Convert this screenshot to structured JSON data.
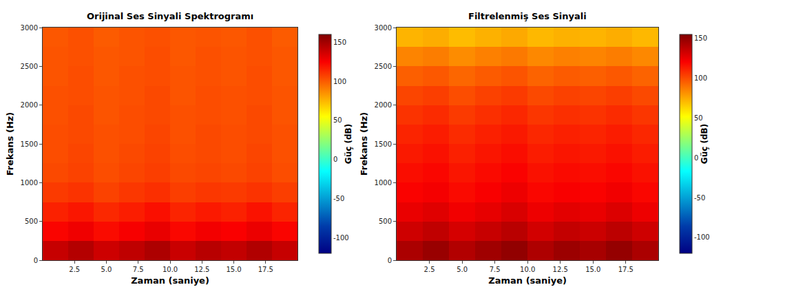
{
  "chart_data": [
    {
      "type": "heatmap",
      "title": "Orijinal Ses Sinyali Spektrogramı",
      "x_label": "Zaman (saniye)",
      "y_label": "Frekans (Hz)",
      "color": "jet",
      "x": [
        1,
        3,
        5,
        7,
        9,
        11,
        13,
        15,
        17,
        19
      ],
      "y": [
        125,
        375,
        625,
        875,
        1125,
        1375,
        1625,
        1875,
        2125,
        2375,
        2625,
        2875
      ],
      "xlim": [
        0,
        20
      ],
      "xticks": [
        2.5,
        {
          "value": 5,
          "label": "5.0"
        },
        7.5,
        {
          "value": 10,
          "label": "10.0"
        },
        12.5,
        {
          "value": 15,
          "label": "15.0"
        },
        17.5
      ],
      "ylim": [
        0,
        3000
      ],
      "yticks": [
        0,
        500,
        1000,
        1500,
        2000,
        2500,
        3000
      ],
      "cells": [
        [
          140,
          145,
          138,
          142,
          147,
          139,
          144,
          141,
          146,
          140
        ],
        [
          124,
          128,
          122,
          126,
          130,
          123,
          127,
          125,
          129,
          124
        ],
        [
          116,
          119,
          114,
          117,
          121,
          115,
          118,
          116,
          120,
          115
        ],
        [
          109,
          111,
          107,
          110,
          112,
          108,
          110,
          109,
          111,
          108
        ],
        [
          105,
          107,
          104,
          106,
          108,
          105,
          106,
          105,
          107,
          104
        ],
        [
          104,
          106,
          103,
          105,
          107,
          104,
          105,
          104,
          106,
          103
        ],
        [
          104,
          105,
          103,
          104,
          106,
          103,
          105,
          104,
          105,
          103
        ],
        [
          103,
          105,
          102,
          104,
          105,
          103,
          104,
          103,
          105,
          102
        ],
        [
          103,
          104,
          102,
          103,
          105,
          102,
          104,
          103,
          104,
          102
        ],
        [
          102,
          104,
          101,
          103,
          104,
          102,
          103,
          102,
          104,
          101
        ],
        [
          102,
          103,
          101,
          102,
          104,
          101,
          103,
          102,
          103,
          101
        ],
        [
          101,
          103,
          100,
          102,
          103,
          101,
          102,
          101,
          103,
          100
        ]
      ],
      "color_label": "Güç (dB)",
      "color_range": [
        -120,
        160
      ],
      "color_ticks": [
        -100,
        -50,
        0,
        50,
        100,
        150
      ]
    },
    {
      "type": "heatmap",
      "title": "Filtrelenmiş Ses Sinyali",
      "x_label": "Zaman (saniye)",
      "y_label": "Frekans (Hz)",
      "color": "jet",
      "x": [
        1,
        3,
        5,
        7,
        9,
        11,
        13,
        15,
        17,
        19
      ],
      "y": [
        125,
        375,
        625,
        875,
        1125,
        1375,
        1625,
        1875,
        2125,
        2375,
        2625,
        2875
      ],
      "xlim": [
        0,
        20
      ],
      "xticks": [
        2.5,
        {
          "value": 5,
          "label": "5.0"
        },
        7.5,
        {
          "value": 10,
          "label": "10.0"
        },
        12.5,
        {
          "value": 15,
          "label": "15.0"
        },
        17.5
      ],
      "ylim": [
        0,
        3000
      ],
      "yticks": [
        0,
        500,
        1000,
        1500,
        2000,
        2500,
        3000
      ],
      "cells": [
        [
          143,
          148,
          141,
          146,
          150,
          142,
          147,
          144,
          149,
          143
        ],
        [
          133,
          137,
          131,
          135,
          139,
          132,
          136,
          134,
          138,
          133
        ],
        [
          125,
          128,
          123,
          126,
          130,
          124,
          127,
          125,
          129,
          124
        ],
        [
          120,
          122,
          118,
          121,
          124,
          119,
          121,
          120,
          123,
          119
        ],
        [
          117,
          119,
          115,
          118,
          120,
          116,
          118,
          117,
          119,
          116
        ],
        [
          114,
          116,
          112,
          115,
          117,
          113,
          115,
          114,
          116,
          113
        ],
        [
          111,
          113,
          109,
          112,
          114,
          110,
          112,
          111,
          113,
          110
        ],
        [
          107,
          109,
          105,
          108,
          110,
          106,
          108,
          107,
          109,
          106
        ],
        [
          102,
          104,
          100,
          103,
          105,
          101,
          103,
          102,
          104,
          101
        ],
        [
          95,
          97,
          93,
          96,
          98,
          94,
          96,
          95,
          97,
          94
        ],
        [
          85,
          87,
          83,
          86,
          88,
          84,
          86,
          85,
          87,
          84
        ],
        [
          72,
          74,
          70,
          73,
          75,
          71,
          73,
          72,
          74,
          71
        ]
      ],
      "color_label": "Güç (dB)",
      "color_range": [
        -120,
        155
      ],
      "color_ticks": [
        -100,
        -50,
        0,
        50,
        100,
        150
      ]
    }
  ]
}
